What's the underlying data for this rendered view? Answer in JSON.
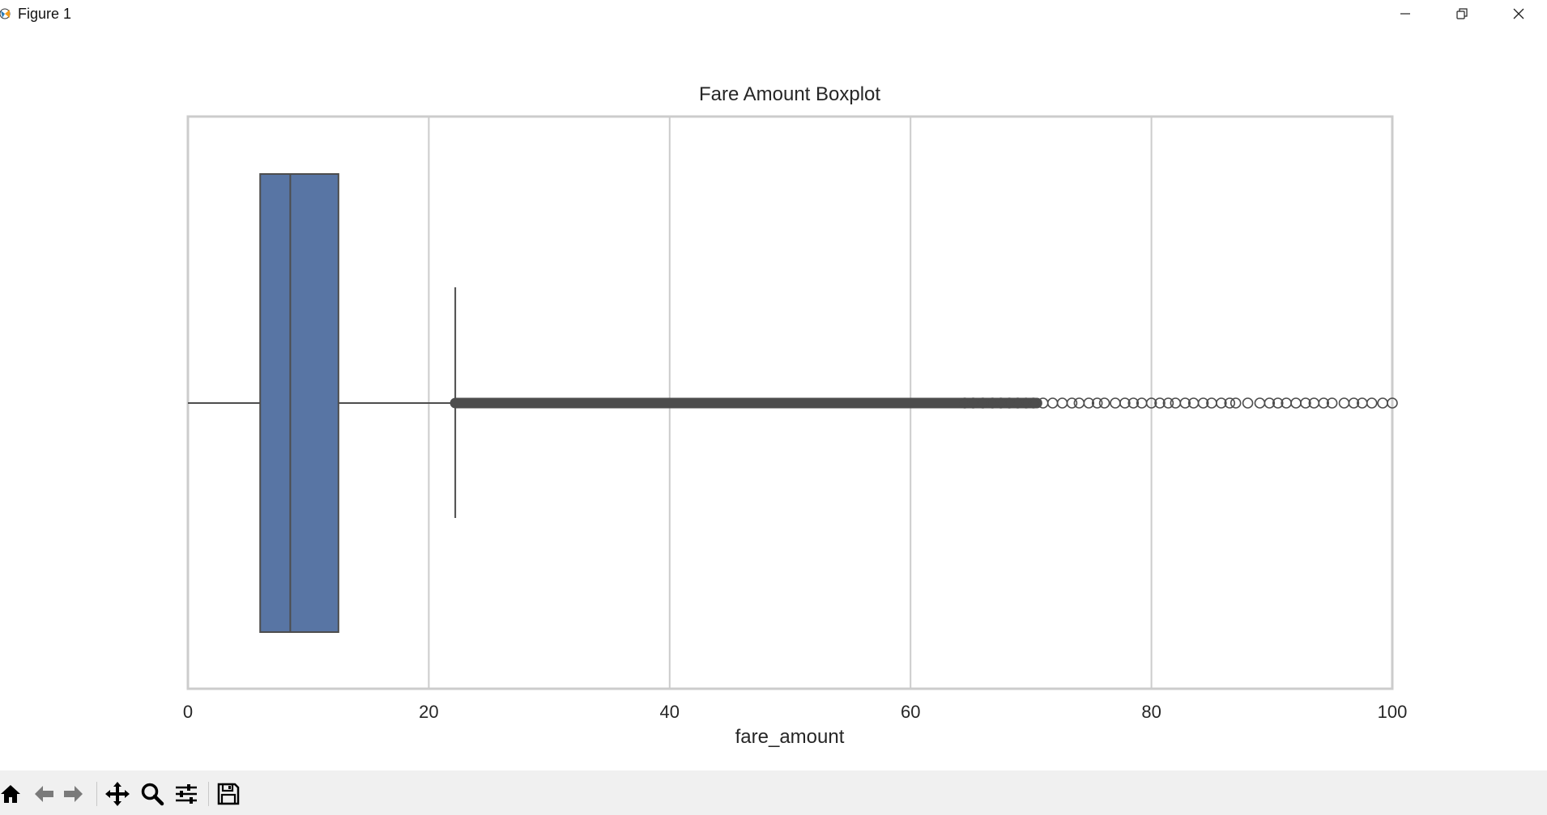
{
  "window": {
    "title": "Figure 1",
    "controls": [
      "minimize",
      "restore",
      "close"
    ]
  },
  "toolbar": {
    "buttons": [
      "home-icon",
      "back-icon",
      "forward-icon",
      "pan-icon",
      "zoom-icon",
      "configure-subplots-icon",
      "save-icon"
    ]
  },
  "chart_data": {
    "type": "boxplot",
    "orientation": "horizontal",
    "title": "Fare Amount Boxplot",
    "xlabel": "fare_amount",
    "ylabel": "",
    "xlim": [
      0,
      100
    ],
    "x_ticks": [
      "0",
      "20",
      "40",
      "60",
      "80",
      "100"
    ],
    "x_tick_values": [
      0,
      20,
      40,
      60,
      80,
      100
    ],
    "grid": "vertical",
    "box": {
      "whisker_low": 0,
      "q1": 6,
      "median": 8.5,
      "q3": 12.5,
      "whisker_high": 22.2
    },
    "outliers_dense_range": [
      22.2,
      70.5
    ],
    "outliers": [
      64.5,
      65.2,
      66.0,
      66.8,
      67.5,
      68.2,
      68.9,
      69.6,
      70.2,
      71.0,
      71.8,
      72.6,
      73.4,
      74.0,
      74.8,
      75.5,
      76.1,
      77.0,
      77.8,
      78.5,
      79.2,
      80.0,
      80.7,
      81.4,
      82.0,
      82.8,
      83.5,
      84.3,
      85.0,
      85.8,
      86.5,
      87.0,
      88.0,
      89.0,
      89.8,
      90.5,
      91.2,
      92.0,
      92.8,
      93.5,
      94.3,
      95.0,
      96.0,
      96.8,
      97.5,
      98.3,
      99.2,
      100.0
    ],
    "box_color": "#5875a4",
    "line_color": "#4d4d4d"
  }
}
